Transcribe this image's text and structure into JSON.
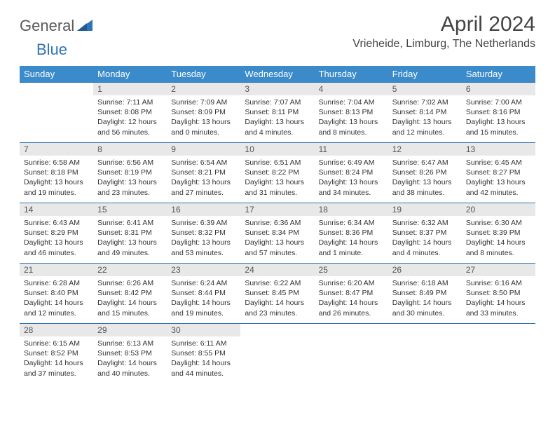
{
  "logo": {
    "part1": "General",
    "part2": "Blue"
  },
  "title": "April 2024",
  "location": "Vrieheide, Limburg, The Netherlands",
  "colors": {
    "header_bg": "#3b8bca",
    "header_text": "#ffffff",
    "row_border": "#2f74b5",
    "daynum_bg": "#e8e8e8",
    "logo_blue": "#2f74b5",
    "logo_gray": "#5a5a5a"
  },
  "weekdays": [
    "Sunday",
    "Monday",
    "Tuesday",
    "Wednesday",
    "Thursday",
    "Friday",
    "Saturday"
  ],
  "weeks": [
    [
      {
        "n": "",
        "sr": "",
        "ss": "",
        "dl": ""
      },
      {
        "n": "1",
        "sr": "7:11 AM",
        "ss": "8:08 PM",
        "dl": "12 hours and 56 minutes."
      },
      {
        "n": "2",
        "sr": "7:09 AM",
        "ss": "8:09 PM",
        "dl": "13 hours and 0 minutes."
      },
      {
        "n": "3",
        "sr": "7:07 AM",
        "ss": "8:11 PM",
        "dl": "13 hours and 4 minutes."
      },
      {
        "n": "4",
        "sr": "7:04 AM",
        "ss": "8:13 PM",
        "dl": "13 hours and 8 minutes."
      },
      {
        "n": "5",
        "sr": "7:02 AM",
        "ss": "8:14 PM",
        "dl": "13 hours and 12 minutes."
      },
      {
        "n": "6",
        "sr": "7:00 AM",
        "ss": "8:16 PM",
        "dl": "13 hours and 15 minutes."
      }
    ],
    [
      {
        "n": "7",
        "sr": "6:58 AM",
        "ss": "8:18 PM",
        "dl": "13 hours and 19 minutes."
      },
      {
        "n": "8",
        "sr": "6:56 AM",
        "ss": "8:19 PM",
        "dl": "13 hours and 23 minutes."
      },
      {
        "n": "9",
        "sr": "6:54 AM",
        "ss": "8:21 PM",
        "dl": "13 hours and 27 minutes."
      },
      {
        "n": "10",
        "sr": "6:51 AM",
        "ss": "8:22 PM",
        "dl": "13 hours and 31 minutes."
      },
      {
        "n": "11",
        "sr": "6:49 AM",
        "ss": "8:24 PM",
        "dl": "13 hours and 34 minutes."
      },
      {
        "n": "12",
        "sr": "6:47 AM",
        "ss": "8:26 PM",
        "dl": "13 hours and 38 minutes."
      },
      {
        "n": "13",
        "sr": "6:45 AM",
        "ss": "8:27 PM",
        "dl": "13 hours and 42 minutes."
      }
    ],
    [
      {
        "n": "14",
        "sr": "6:43 AM",
        "ss": "8:29 PM",
        "dl": "13 hours and 46 minutes."
      },
      {
        "n": "15",
        "sr": "6:41 AM",
        "ss": "8:31 PM",
        "dl": "13 hours and 49 minutes."
      },
      {
        "n": "16",
        "sr": "6:39 AM",
        "ss": "8:32 PM",
        "dl": "13 hours and 53 minutes."
      },
      {
        "n": "17",
        "sr": "6:36 AM",
        "ss": "8:34 PM",
        "dl": "13 hours and 57 minutes."
      },
      {
        "n": "18",
        "sr": "6:34 AM",
        "ss": "8:36 PM",
        "dl": "14 hours and 1 minute."
      },
      {
        "n": "19",
        "sr": "6:32 AM",
        "ss": "8:37 PM",
        "dl": "14 hours and 4 minutes."
      },
      {
        "n": "20",
        "sr": "6:30 AM",
        "ss": "8:39 PM",
        "dl": "14 hours and 8 minutes."
      }
    ],
    [
      {
        "n": "21",
        "sr": "6:28 AM",
        "ss": "8:40 PM",
        "dl": "14 hours and 12 minutes."
      },
      {
        "n": "22",
        "sr": "6:26 AM",
        "ss": "8:42 PM",
        "dl": "14 hours and 15 minutes."
      },
      {
        "n": "23",
        "sr": "6:24 AM",
        "ss": "8:44 PM",
        "dl": "14 hours and 19 minutes."
      },
      {
        "n": "24",
        "sr": "6:22 AM",
        "ss": "8:45 PM",
        "dl": "14 hours and 23 minutes."
      },
      {
        "n": "25",
        "sr": "6:20 AM",
        "ss": "8:47 PM",
        "dl": "14 hours and 26 minutes."
      },
      {
        "n": "26",
        "sr": "6:18 AM",
        "ss": "8:49 PM",
        "dl": "14 hours and 30 minutes."
      },
      {
        "n": "27",
        "sr": "6:16 AM",
        "ss": "8:50 PM",
        "dl": "14 hours and 33 minutes."
      }
    ],
    [
      {
        "n": "28",
        "sr": "6:15 AM",
        "ss": "8:52 PM",
        "dl": "14 hours and 37 minutes."
      },
      {
        "n": "29",
        "sr": "6:13 AM",
        "ss": "8:53 PM",
        "dl": "14 hours and 40 minutes."
      },
      {
        "n": "30",
        "sr": "6:11 AM",
        "ss": "8:55 PM",
        "dl": "14 hours and 44 minutes."
      },
      {
        "n": "",
        "sr": "",
        "ss": "",
        "dl": ""
      },
      {
        "n": "",
        "sr": "",
        "ss": "",
        "dl": ""
      },
      {
        "n": "",
        "sr": "",
        "ss": "",
        "dl": ""
      },
      {
        "n": "",
        "sr": "",
        "ss": "",
        "dl": ""
      }
    ]
  ],
  "labels": {
    "sunrise": "Sunrise: ",
    "sunset": "Sunset: ",
    "daylight": "Daylight: "
  }
}
